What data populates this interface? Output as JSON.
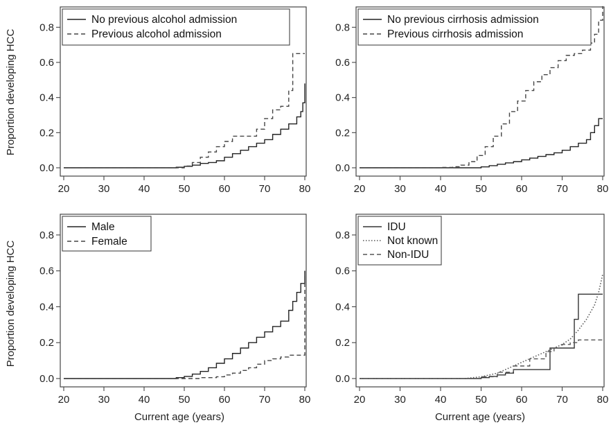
{
  "figure": {
    "ylabel": "Proportion developing HCC",
    "xlabel": "Current age (years)"
  },
  "chart_data": [
    {
      "type": "line",
      "panel": "top-left",
      "xlabel": "",
      "ylabel": "Proportion developing HCC",
      "xlim": [
        20,
        80
      ],
      "ylim": [
        0,
        0.9
      ],
      "xticks": [
        20,
        30,
        40,
        50,
        60,
        70,
        80
      ],
      "yticks": [
        0.0,
        0.2,
        0.4,
        0.6,
        0.8
      ],
      "legend_position": "top-left",
      "series": [
        {
          "name": "No previous alcohol admission",
          "style": "solid",
          "color": "#222222",
          "step": true,
          "x": [
            20,
            46,
            48,
            50,
            52,
            54,
            56,
            58,
            60,
            62,
            64,
            66,
            68,
            70,
            72,
            74,
            76,
            78,
            79,
            79.5,
            80
          ],
          "y": [
            0.0,
            0.0,
            0.003,
            0.008,
            0.015,
            0.025,
            0.03,
            0.04,
            0.06,
            0.08,
            0.1,
            0.12,
            0.14,
            0.16,
            0.19,
            0.22,
            0.25,
            0.29,
            0.32,
            0.37,
            0.48
          ]
        },
        {
          "name": "Previous alcohol admission",
          "style": "dashed",
          "color": "#444444",
          "step": true,
          "x": [
            20,
            48,
            50,
            52,
            54,
            56,
            58,
            60,
            62,
            65,
            68,
            70,
            72,
            74,
            76,
            77,
            80
          ],
          "y": [
            0.0,
            0.0,
            0.01,
            0.03,
            0.06,
            0.09,
            0.12,
            0.15,
            0.18,
            0.18,
            0.22,
            0.28,
            0.33,
            0.35,
            0.44,
            0.65,
            0.65
          ]
        }
      ]
    },
    {
      "type": "line",
      "panel": "top-right",
      "xlabel": "",
      "ylabel": "",
      "xlim": [
        20,
        80
      ],
      "ylim": [
        0,
        0.9
      ],
      "xticks": [
        20,
        30,
        40,
        50,
        60,
        70,
        80
      ],
      "yticks": [
        0.0,
        0.2,
        0.4,
        0.6,
        0.8
      ],
      "legend_position": "top-left",
      "series": [
        {
          "name": "No previous cirrhosis admission",
          "style": "solid",
          "color": "#222222",
          "step": true,
          "x": [
            20,
            46,
            50,
            52,
            54,
            56,
            58,
            60,
            62,
            64,
            66,
            68,
            70,
            72,
            74,
            76,
            77,
            78,
            79,
            80
          ],
          "y": [
            0.0,
            0.0,
            0.005,
            0.012,
            0.02,
            0.028,
            0.035,
            0.045,
            0.055,
            0.065,
            0.075,
            0.085,
            0.1,
            0.12,
            0.14,
            0.16,
            0.2,
            0.24,
            0.28,
            0.28
          ]
        },
        {
          "name": "Previous cirrhosis admission",
          "style": "dashed",
          "color": "#444444",
          "step": true,
          "x": [
            20,
            37,
            40,
            43,
            45,
            47,
            49,
            51,
            53,
            55,
            57,
            59,
            61,
            63,
            65,
            67,
            69,
            71,
            73,
            75,
            77,
            78,
            79,
            80
          ],
          "y": [
            0.0,
            0.0,
            0.002,
            0.006,
            0.015,
            0.035,
            0.07,
            0.12,
            0.18,
            0.25,
            0.32,
            0.38,
            0.44,
            0.49,
            0.53,
            0.57,
            0.61,
            0.64,
            0.65,
            0.67,
            0.71,
            0.76,
            0.84,
            0.92
          ]
        }
      ]
    },
    {
      "type": "line",
      "panel": "bottom-left",
      "xlabel": "Current age (years)",
      "ylabel": "Proportion developing HCC",
      "xlim": [
        20,
        80
      ],
      "ylim": [
        0,
        0.9
      ],
      "xticks": [
        20,
        30,
        40,
        50,
        60,
        70,
        80
      ],
      "yticks": [
        0.0,
        0.2,
        0.4,
        0.6,
        0.8
      ],
      "legend_position": "top-left",
      "series": [
        {
          "name": "Male",
          "style": "solid",
          "color": "#222222",
          "step": true,
          "x": [
            20,
            46,
            48,
            50,
            52,
            54,
            56,
            58,
            60,
            62,
            64,
            66,
            68,
            70,
            72,
            74,
            76,
            77,
            78,
            79,
            80
          ],
          "y": [
            0.0,
            0.0,
            0.005,
            0.012,
            0.025,
            0.04,
            0.06,
            0.085,
            0.11,
            0.14,
            0.17,
            0.2,
            0.23,
            0.26,
            0.29,
            0.32,
            0.38,
            0.43,
            0.48,
            0.53,
            0.6
          ]
        },
        {
          "name": "Female",
          "style": "dashed",
          "color": "#444444",
          "step": true,
          "x": [
            20,
            50,
            54,
            58,
            60,
            62,
            64,
            66,
            68,
            70,
            72,
            74,
            76,
            78,
            79.5,
            80
          ],
          "y": [
            0.0,
            0.0,
            0.005,
            0.01,
            0.02,
            0.03,
            0.045,
            0.06,
            0.08,
            0.1,
            0.11,
            0.12,
            0.13,
            0.13,
            0.13,
            0.6
          ]
        }
      ]
    },
    {
      "type": "line",
      "panel": "bottom-right",
      "xlabel": "Current age (years)",
      "ylabel": "",
      "xlim": [
        20,
        80
      ],
      "ylim": [
        0,
        0.9
      ],
      "xticks": [
        20,
        30,
        40,
        50,
        60,
        70,
        80
      ],
      "yticks": [
        0.0,
        0.2,
        0.4,
        0.6,
        0.8
      ],
      "legend_position": "top-left",
      "series": [
        {
          "name": "IDU",
          "style": "solid",
          "color": "#333333",
          "step": true,
          "x": [
            20,
            48,
            50,
            52,
            54,
            56,
            58,
            62,
            67,
            72,
            73,
            74,
            80
          ],
          "y": [
            0.0,
            0.0,
            0.005,
            0.012,
            0.02,
            0.03,
            0.05,
            0.05,
            0.17,
            0.17,
            0.33,
            0.47,
            0.47
          ]
        },
        {
          "name": "Not known",
          "style": "dotted",
          "color": "#555555",
          "step": false,
          "x": [
            20,
            46,
            50,
            54,
            58,
            62,
            66,
            70,
            72,
            74,
            76,
            78,
            79,
            80
          ],
          "y": [
            0.0,
            0.0,
            0.01,
            0.03,
            0.07,
            0.11,
            0.15,
            0.19,
            0.22,
            0.27,
            0.33,
            0.41,
            0.48,
            0.58
          ]
        },
        {
          "name": "Non-IDU",
          "style": "dashed",
          "color": "#555555",
          "step": true,
          "x": [
            20,
            47,
            50,
            54,
            58,
            62,
            66,
            68,
            70,
            72,
            74,
            80
          ],
          "y": [
            0.0,
            0.0,
            0.01,
            0.035,
            0.07,
            0.11,
            0.15,
            0.17,
            0.19,
            0.2,
            0.215,
            0.215
          ]
        }
      ]
    }
  ]
}
